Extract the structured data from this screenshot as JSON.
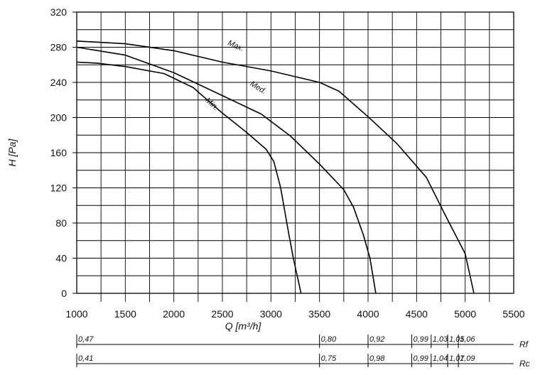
{
  "chart_data": {
    "type": "line",
    "title": "",
    "xlabel": "Q [m³/h]",
    "ylabel": "H [Pa]",
    "xlim": [
      1000,
      5500
    ],
    "ylim": [
      0,
      320
    ],
    "xticks": [
      1000,
      1500,
      2000,
      2500,
      3000,
      3500,
      4000,
      4500,
      5000,
      5500
    ],
    "yticks": [
      0,
      40,
      80,
      120,
      160,
      200,
      240,
      280,
      320
    ],
    "grid": true,
    "series": [
      {
        "name": "Max.",
        "x": [
          1000,
          1500,
          2000,
          2500,
          3000,
          3500,
          3700,
          4000,
          4300,
          4600,
          4800,
          5000,
          5090
        ],
        "y": [
          287,
          284,
          276,
          263,
          253,
          240,
          230,
          201,
          170,
          132,
          88,
          45,
          0
        ]
      },
      {
        "name": "Med.",
        "x": [
          1000,
          1500,
          2000,
          2500,
          2900,
          3200,
          3500,
          3750,
          3850,
          3950,
          4020,
          4080
        ],
        "y": [
          280,
          271,
          251,
          225,
          204,
          179,
          147,
          118,
          98,
          67,
          40,
          0
        ]
      },
      {
        "name": "Min.",
        "x": [
          1000,
          1200,
          1500,
          1900,
          2200,
          2500,
          2750,
          2950,
          3030,
          3100,
          3180,
          3230,
          3310
        ],
        "y": [
          263,
          262,
          258,
          250,
          234,
          205,
          183,
          164,
          150,
          120,
          70,
          40,
          0
        ]
      }
    ],
    "secondary_scales": [
      {
        "name": "Rf",
        "marks": [
          {
            "q": 1000,
            "label": "0,47"
          },
          {
            "q": 3500,
            "label": "0,80"
          },
          {
            "q": 4000,
            "label": "0,92"
          },
          {
            "q": 4450,
            "label": "0,99"
          },
          {
            "q": 4650,
            "label": "1,03"
          },
          {
            "q": 4820,
            "label": "1,05"
          },
          {
            "q": 4930,
            "label": "1,06"
          }
        ]
      },
      {
        "name": "Rc",
        "marks": [
          {
            "q": 1000,
            "label": "0,41"
          },
          {
            "q": 3500,
            "label": "0,75"
          },
          {
            "q": 4000,
            "label": "0,98"
          },
          {
            "q": 4450,
            "label": "0,99"
          },
          {
            "q": 4650,
            "label": "1,04"
          },
          {
            "q": 4820,
            "label": "1,07"
          },
          {
            "q": 4930,
            "label": "1,09"
          }
        ]
      }
    ]
  }
}
